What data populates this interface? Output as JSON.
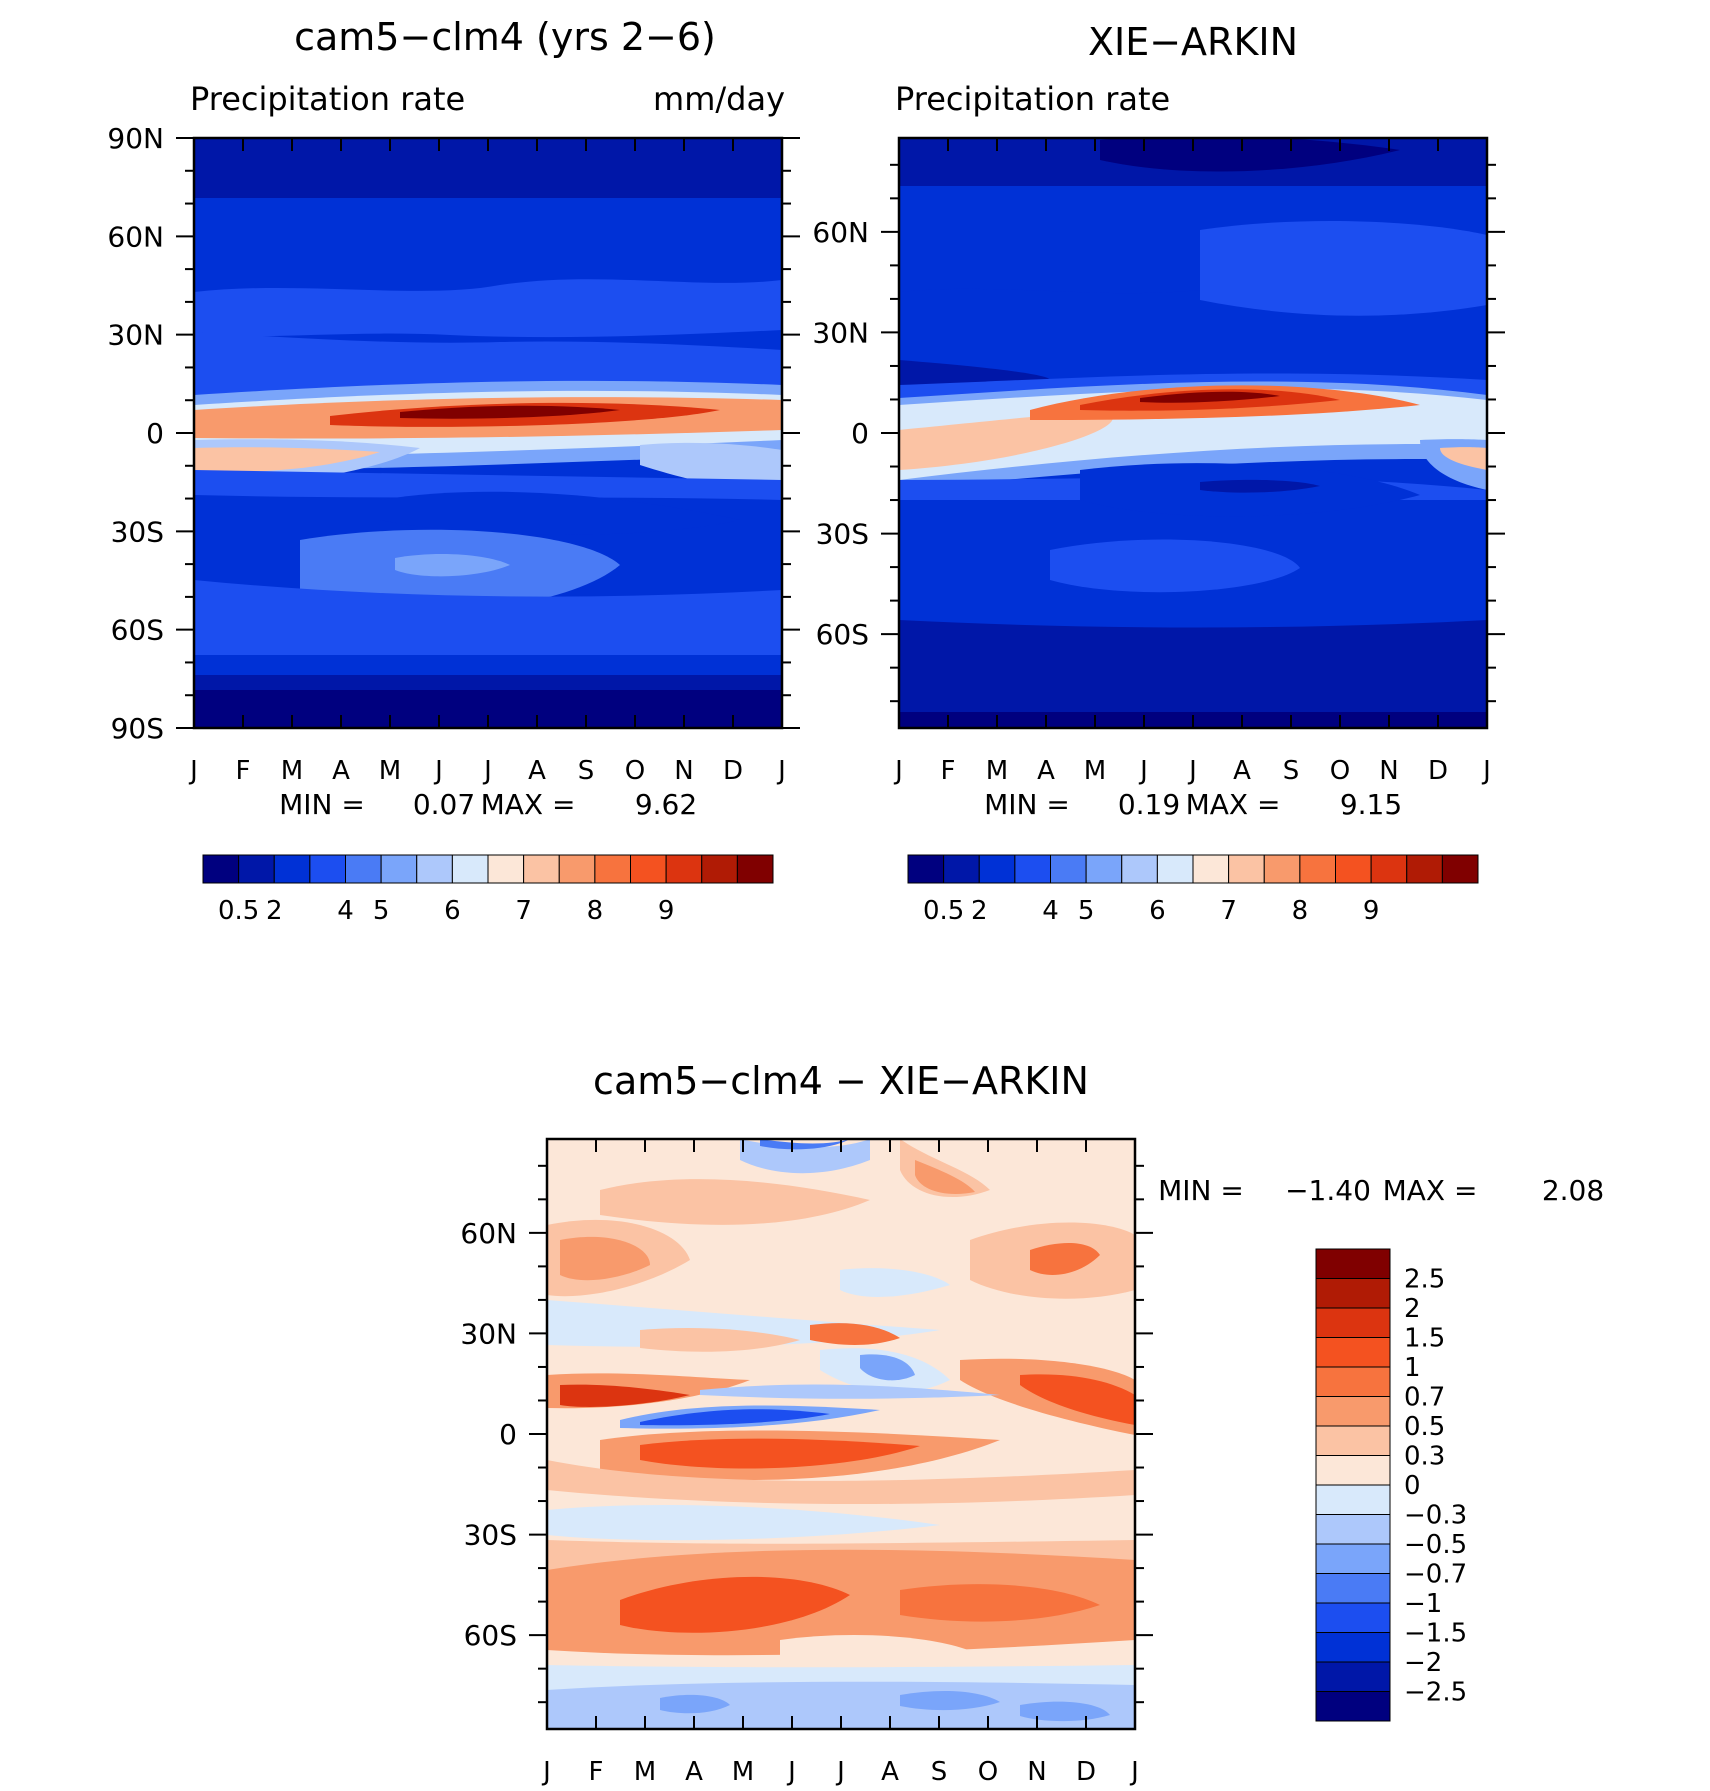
{
  "chart_data": [
    {
      "type": "heatmap",
      "title": "cam5−clm4 (yrs 2−6)",
      "subtitle_left": "Precipitation rate",
      "subtitle_right": "mm/day",
      "x_tick_labels": [
        "J",
        "F",
        "M",
        "A",
        "M",
        "J",
        "J",
        "A",
        "S",
        "O",
        "N",
        "D",
        "J"
      ],
      "y_tick_labels": [
        "90N",
        "60N",
        "30N",
        "0",
        "30S",
        "60S",
        "90S"
      ],
      "y_tick_values": [
        90,
        60,
        30,
        0,
        -30,
        -60,
        -90
      ],
      "ylim": [
        -90,
        90
      ],
      "min_label": "MIN =",
      "min_value": "0.07",
      "max_label": "MAX =",
      "max_value": "9.62",
      "colorbar_labels": [
        "0.5",
        "2",
        "4",
        "5",
        "6",
        "7",
        "8",
        "9"
      ],
      "colorbar_colors": [
        "#00007f",
        "#0017a8",
        "#0031d6",
        "#1c4ef0",
        "#4a7bf5",
        "#7aa5fa",
        "#adc8fb",
        "#d8e9fb",
        "#fce7d8",
        "#fbc3a4",
        "#f89a6c",
        "#f7733e",
        "#f45220",
        "#dc3410",
        "#b01b05",
        "#800000"
      ]
    },
    {
      "type": "heatmap",
      "title": "XIE−ARKIN",
      "subtitle_left": "Precipitation rate",
      "x_tick_labels": [
        "J",
        "F",
        "M",
        "A",
        "M",
        "J",
        "J",
        "A",
        "S",
        "O",
        "N",
        "D",
        "J"
      ],
      "y_tick_labels": [
        "60N",
        "30N",
        "0",
        "30S",
        "60S"
      ],
      "y_tick_values": [
        60,
        30,
        0,
        -30,
        -60
      ],
      "ylim": [
        -88,
        88
      ],
      "min_label": "MIN =",
      "min_value": "0.19",
      "max_label": "MAX =",
      "max_value": "9.15",
      "colorbar_labels": [
        "0.5",
        "2",
        "4",
        "5",
        "6",
        "7",
        "8",
        "9"
      ],
      "colorbar_colors": [
        "#00007f",
        "#0017a8",
        "#0031d6",
        "#1c4ef0",
        "#4a7bf5",
        "#7aa5fa",
        "#adc8fb",
        "#d8e9fb",
        "#fce7d8",
        "#fbc3a4",
        "#f89a6c",
        "#f7733e",
        "#f45220",
        "#dc3410",
        "#b01b05",
        "#800000"
      ]
    },
    {
      "type": "heatmap",
      "title": "cam5−clm4 − XIE−ARKIN",
      "x_tick_labels": [
        "J",
        "F",
        "M",
        "A",
        "M",
        "J",
        "J",
        "A",
        "S",
        "O",
        "N",
        "D",
        "J"
      ],
      "y_tick_labels": [
        "60N",
        "30N",
        "0",
        "30S",
        "60S"
      ],
      "y_tick_values": [
        60,
        30,
        0,
        -30,
        -60
      ],
      "ylim": [
        -88,
        88
      ],
      "min_label": "MIN =",
      "min_value": "−1.40",
      "max_label": "MAX =",
      "max_value": "2.08",
      "colorbar_labels": [
        "2.5",
        "2",
        "1.5",
        "1",
        "0.7",
        "0.5",
        "0.3",
        "0",
        "−0.3",
        "−0.5",
        "−0.7",
        "−1",
        "−1.5",
        "−2",
        "−2.5"
      ],
      "colorbar_colors": [
        "#800000",
        "#b01b05",
        "#dc3410",
        "#f45220",
        "#f7733e",
        "#f89a6c",
        "#fbc3a4",
        "#fce7d8",
        "#d8e9fb",
        "#adc8fb",
        "#7aa5fa",
        "#4a7bf5",
        "#1c4ef0",
        "#0031d6",
        "#0017a8",
        "#00007f"
      ]
    }
  ]
}
